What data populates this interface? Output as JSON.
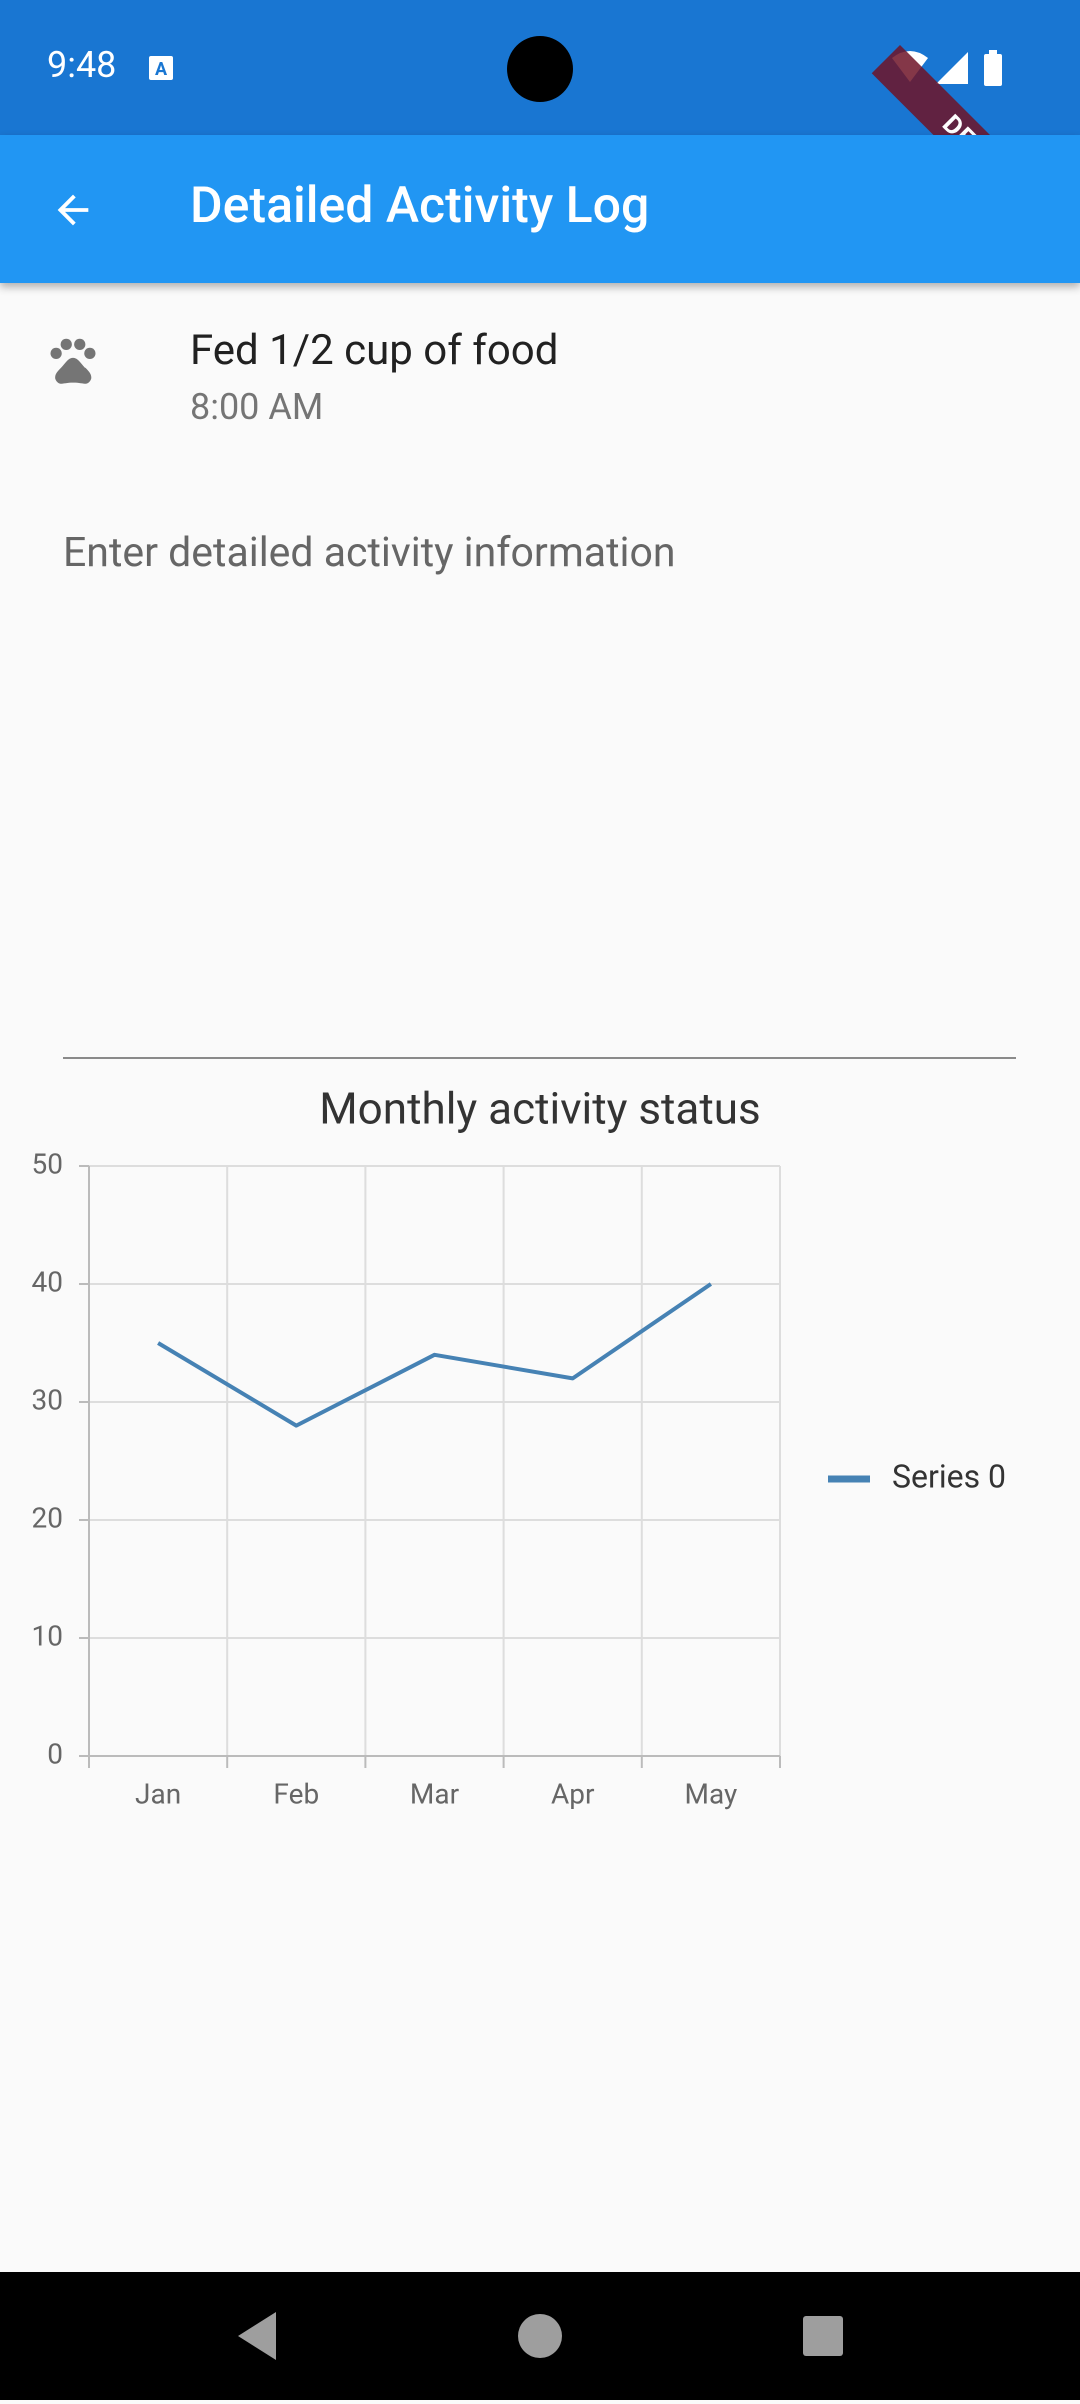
{
  "status_bar": {
    "time": "9:48"
  },
  "debug_banner": "DEBUG",
  "app_bar": {
    "title": "Detailed Activity Log"
  },
  "activity": {
    "title": "Fed 1/2 cup of food",
    "time": "8:00 AM"
  },
  "input": {
    "placeholder": "Enter detailed activity information"
  },
  "chart_data": {
    "type": "line",
    "title": "Monthly activity status",
    "categories": [
      "Jan",
      "Feb",
      "Mar",
      "Apr",
      "May"
    ],
    "series": [
      {
        "name": "Series 0",
        "color": "#4682b4",
        "values": [
          35,
          28,
          34,
          32,
          40
        ]
      }
    ],
    "ylim": [
      0,
      50
    ],
    "yticks": [
      0,
      10,
      20,
      30,
      40,
      50
    ],
    "grid": true,
    "legend": "right"
  }
}
